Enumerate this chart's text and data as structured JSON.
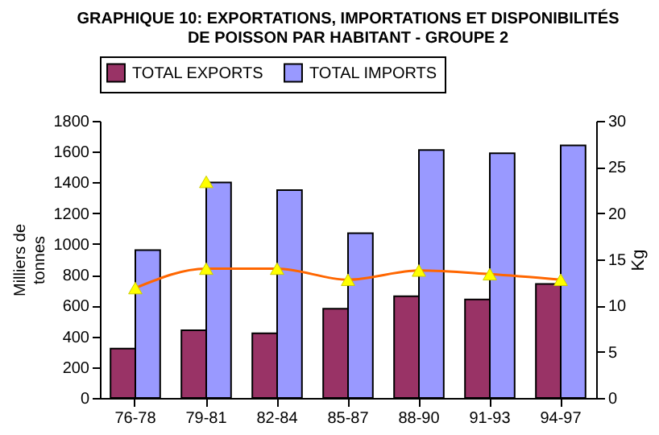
{
  "chart_data": {
    "type": "bar",
    "title": "GRAPHIQUE 10: EXPORTATIONS, IMPORTATIONS ET DISPONIBILITÉS\nDE POISSON PAR HABITANT - GROUPE 2",
    "ylabel": "Milliers de tonnes",
    "y2label": "Kg",
    "categories": [
      "76-78",
      "79-81",
      "82-84",
      "85-87",
      "88-90",
      "91-93",
      "94-97"
    ],
    "series": [
      {
        "name": "TOTAL EXPORTS",
        "color": "#993366",
        "values": [
          320,
          440,
          420,
          580,
          660,
          640,
          740
        ]
      },
      {
        "name": "TOTAL IMPORTS",
        "color": "#9999ff",
        "values": [
          960,
          1400,
          1350,
          1070,
          1610,
          1590,
          1640
        ]
      },
      {
        "type": "line",
        "axis": "y2",
        "color": "#ff6600",
        "marker": "triangle",
        "values": [
          11.9,
          14.0,
          14.0,
          12.8,
          13.8,
          13.4,
          12.8
        ]
      },
      {
        "type": "line",
        "axis": "y2",
        "color": "#ffff00",
        "marker": "triangle",
        "values": [
          null,
          23.4,
          null,
          null,
          null,
          null,
          null
        ]
      }
    ],
    "ylim": [
      0,
      1800
    ],
    "yticks": [
      0,
      200,
      400,
      600,
      800,
      1000,
      1200,
      1400,
      1600,
      1800
    ],
    "y2lim": [
      0,
      30
    ],
    "y2ticks": [
      0,
      5,
      10,
      15,
      20,
      25,
      30
    ],
    "legend": "top",
    "grid": false
  }
}
